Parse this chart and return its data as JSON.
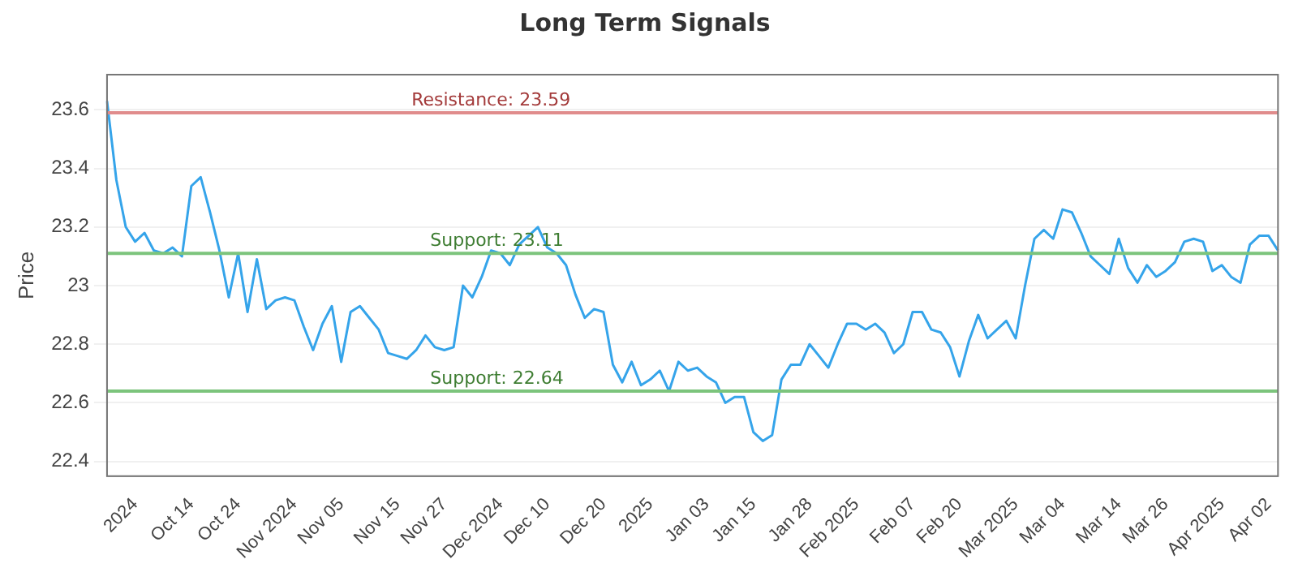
{
  "chart_data": {
    "type": "line",
    "title": "Long Term Signals",
    "ylabel": "Price",
    "categories": [
      null,
      null,
      null,
      "2024",
      null,
      null,
      null,
      null,
      null,
      "Oct 14",
      null,
      null,
      null,
      null,
      "Oct 24",
      null,
      null,
      null,
      null,
      null,
      "Nov 2024",
      null,
      null,
      null,
      null,
      "Nov 05",
      null,
      null,
      null,
      null,
      null,
      "Nov 15",
      null,
      null,
      null,
      null,
      "Nov 27",
      null,
      null,
      null,
      null,
      null,
      "Dec 2024",
      null,
      null,
      null,
      null,
      "Dec 10",
      null,
      null,
      null,
      null,
      null,
      "Dec 20",
      null,
      null,
      null,
      null,
      "2025",
      null,
      null,
      null,
      null,
      null,
      "Jan 03",
      null,
      null,
      null,
      null,
      "Jan 15",
      null,
      null,
      null,
      null,
      null,
      "Jan 28",
      null,
      null,
      null,
      null,
      "Feb 2025",
      null,
      null,
      null,
      null,
      null,
      "Feb 07",
      null,
      null,
      null,
      null,
      "Feb 20",
      null,
      null,
      null,
      null,
      null,
      "Mar 2025",
      null,
      null,
      null,
      null,
      "Mar 04",
      null,
      null,
      null,
      null,
      null,
      "Mar 14",
      null,
      null,
      null,
      null,
      "Mar 26",
      null,
      null,
      null,
      null,
      null,
      "Apr 2025",
      null,
      null,
      null,
      null,
      "Apr 02",
      null
    ],
    "series": [
      {
        "color": "#35a4ea",
        "values": [
          23.63,
          23.36,
          23.2,
          23.15,
          23.18,
          23.12,
          23.11,
          23.13,
          23.1,
          23.34,
          23.37,
          23.25,
          23.12,
          22.96,
          23.11,
          22.91,
          23.09,
          22.92,
          22.95,
          22.96,
          22.95,
          22.86,
          22.78,
          22.87,
          22.93,
          22.74,
          22.91,
          22.93,
          22.89,
          22.85,
          22.77,
          22.76,
          22.75,
          22.78,
          22.83,
          22.79,
          22.78,
          22.79,
          23.0,
          22.96,
          23.03,
          23.12,
          23.11,
          23.07,
          23.14,
          23.17,
          23.2,
          23.13,
          23.11,
          23.07,
          22.97,
          22.89,
          22.92,
          22.91,
          22.73,
          22.67,
          22.74,
          22.66,
          22.68,
          22.71,
          22.64,
          22.74,
          22.71,
          22.72,
          22.69,
          22.67,
          22.6,
          22.62,
          22.62,
          22.5,
          22.47,
          22.49,
          22.68,
          22.73,
          22.73,
          22.8,
          22.76,
          22.72,
          22.8,
          22.87,
          22.87,
          22.85,
          22.87,
          22.84,
          22.77,
          22.8,
          22.91,
          22.91,
          22.85,
          22.84,
          22.79,
          22.69,
          22.81,
          22.9,
          22.82,
          22.85,
          22.88,
          22.82,
          23.0,
          23.16,
          23.19,
          23.16,
          23.26,
          23.25,
          23.18,
          23.1,
          23.07,
          23.04,
          23.16,
          23.06,
          23.01,
          23.07,
          23.03,
          23.05,
          23.08,
          23.15,
          23.16,
          23.15,
          23.05,
          23.07,
          23.03,
          23.01,
          23.14,
          23.17,
          23.17,
          23.12
        ]
      }
    ],
    "ylim": [
      22.35,
      23.72
    ],
    "yticks": [
      22.4,
      22.6,
      22.8,
      23.0,
      23.2,
      23.4,
      23.6
    ],
    "ref_lines": [
      {
        "axis": "y",
        "value": 23.59,
        "label": "Resistance: 23.59",
        "color": "#e08c8c"
      },
      {
        "axis": "y",
        "value": 23.11,
        "label": "Support: 23.11",
        "color": "#7cc47c"
      },
      {
        "axis": "y",
        "value": 22.64,
        "label": "Support: 22.64",
        "color": "#7cc47c"
      }
    ],
    "grid": "y",
    "marker": "none",
    "line_style": "solid"
  }
}
